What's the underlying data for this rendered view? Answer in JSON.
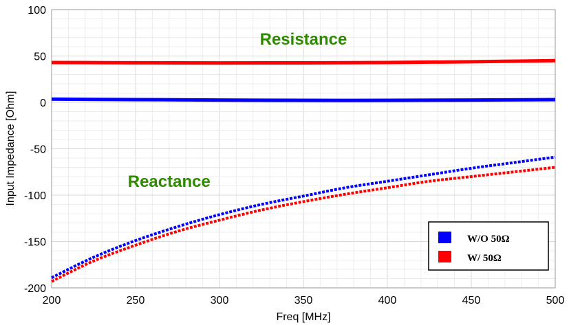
{
  "chart_data": {
    "type": "line",
    "xlabel": "Freq [MHz]",
    "ylabel": "Input Impedance [Ohm]",
    "xlim": [
      200,
      500
    ],
    "ylim": [
      -200,
      100
    ],
    "x_ticks": [
      200,
      250,
      300,
      350,
      400,
      450,
      500
    ],
    "y_ticks": [
      -200,
      -150,
      -100,
      -50,
      0,
      50,
      100
    ],
    "grid": true,
    "legend_position": "bottom-right",
    "legend": [
      {
        "label": "W/O 50Ω",
        "color": "#0000ff"
      },
      {
        "label": "W/ 50Ω",
        "color": "#ff0000"
      }
    ],
    "annotations": [
      {
        "text": "Resistance",
        "x": 350,
        "y": 68
      },
      {
        "text": "Reactance",
        "x": 270,
        "y": -85
      }
    ],
    "series": [
      {
        "group": "W/O 50Ω",
        "kind": "Resistance",
        "color": "#0000ff",
        "dashed": false,
        "x": [
          200,
          250,
          300,
          350,
          400,
          450,
          500
        ],
        "y": [
          3.5,
          3.0,
          2.5,
          2.2,
          2.2,
          2.5,
          3.0
        ]
      },
      {
        "group": "W/ 50Ω",
        "kind": "Resistance",
        "color": "#ff0000",
        "dashed": false,
        "x": [
          200,
          250,
          300,
          350,
          400,
          450,
          500
        ],
        "y": [
          43,
          42.7,
          42.5,
          42.6,
          43,
          43.8,
          45
        ]
      },
      {
        "group": "W/O 50Ω",
        "kind": "Reactance",
        "color": "#0000ff",
        "dashed": true,
        "x": [
          200,
          225,
          250,
          275,
          300,
          325,
          350,
          375,
          400,
          425,
          450,
          475,
          500
        ],
        "y": [
          -189,
          -167,
          -149,
          -134,
          -121,
          -110,
          -101,
          -92,
          -85,
          -78,
          -71,
          -65,
          -59
        ]
      },
      {
        "group": "W/ 50Ω",
        "kind": "Reactance",
        "color": "#ff0000",
        "dashed": true,
        "x": [
          200,
          225,
          250,
          275,
          300,
          325,
          350,
          375,
          400,
          425,
          450,
          475,
          500
        ],
        "y": [
          -193,
          -171,
          -154,
          -139,
          -127,
          -116,
          -107,
          -99,
          -92,
          -85,
          -80,
          -75,
          -70
        ]
      }
    ]
  }
}
